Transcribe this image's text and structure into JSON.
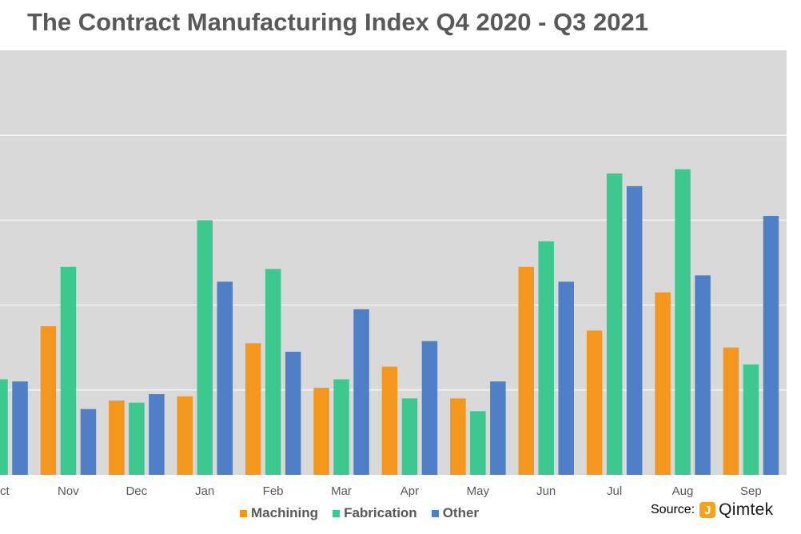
{
  "chart_data": {
    "type": "bar",
    "title": "The Contract Manufacturing Index Q4 2020 - Q3 2021",
    "categories": [
      "Oct",
      "Nov",
      "Dec",
      "Jan",
      "Feb",
      "Mar",
      "Apr",
      "May",
      "Jun",
      "Jul",
      "Aug",
      "Sep"
    ],
    "series": [
      {
        "name": "Machining",
        "color": "#f5961d",
        "values": [
          null,
          35,
          17.5,
          18.5,
          31,
          20.5,
          25.5,
          18,
          49,
          34,
          43,
          30
        ]
      },
      {
        "name": "Fabrication",
        "color": "#3cc88f",
        "values": [
          22.5,
          49,
          17,
          60,
          48.5,
          22.5,
          18,
          15,
          55,
          71,
          72,
          26
        ]
      },
      {
        "name": "Other",
        "color": "#4f7fc6",
        "values": [
          22,
          15.5,
          19,
          45.5,
          29,
          39,
          31.5,
          22,
          45.5,
          68,
          47,
          61
        ]
      }
    ],
    "ylim": [
      0,
      100
    ],
    "grid": true,
    "legend": "bottom",
    "source_label": "Source:",
    "source_name": "Qimtek",
    "source_logo_letter": "J"
  }
}
